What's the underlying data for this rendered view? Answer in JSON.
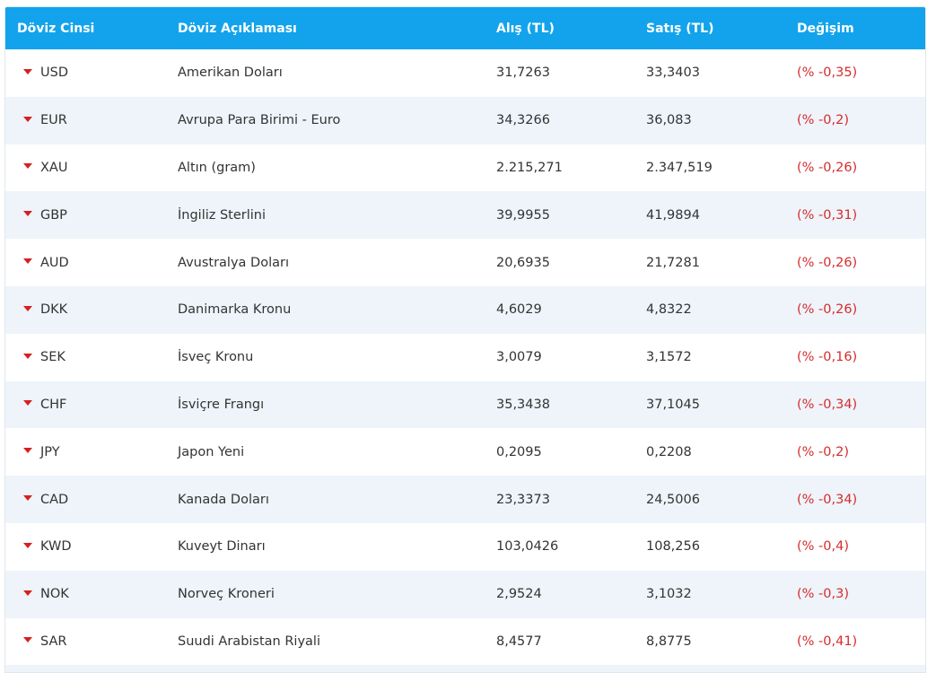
{
  "header": {
    "col1": "Döviz Cinsi",
    "col2": "Döviz Açıklaması",
    "col3": "Alış (TL)",
    "col4": "Satış (TL)",
    "col5": "Değişim"
  },
  "colors": {
    "header_bg": "#12a3ec",
    "row_alt_bg": "#eef4fa",
    "down_arrow": "#d62020",
    "change_text": "#d62c2c"
  },
  "rows": [
    {
      "code": "USD",
      "name": "Amerikan Doları",
      "buy": "31,7263",
      "sell": "33,3403",
      "change": "(% -0,35)",
      "trend_icon": "down-arrow-icon"
    },
    {
      "code": "EUR",
      "name": "Avrupa Para Birimi - Euro",
      "buy": "34,3266",
      "sell": "36,083",
      "change": "(% -0,2)",
      "trend_icon": "down-arrow-icon"
    },
    {
      "code": "XAU",
      "name": "Altın (gram)",
      "buy": "2.215,271",
      "sell": "2.347,519",
      "change": "(% -0,26)",
      "trend_icon": "down-arrow-icon"
    },
    {
      "code": "GBP",
      "name": "İngiliz Sterlini",
      "buy": "39,9955",
      "sell": "41,9894",
      "change": "(% -0,31)",
      "trend_icon": "down-arrow-icon"
    },
    {
      "code": "AUD",
      "name": "Avustralya Doları",
      "buy": "20,6935",
      "sell": "21,7281",
      "change": "(% -0,26)",
      "trend_icon": "down-arrow-icon"
    },
    {
      "code": "DKK",
      "name": "Danimarka Kronu",
      "buy": "4,6029",
      "sell": "4,8322",
      "change": "(% -0,26)",
      "trend_icon": "down-arrow-icon"
    },
    {
      "code": "SEK",
      "name": "İsveç Kronu",
      "buy": "3,0079",
      "sell": "3,1572",
      "change": "(% -0,16)",
      "trend_icon": "down-arrow-icon"
    },
    {
      "code": "CHF",
      "name": "İsviçre Frangı",
      "buy": "35,3438",
      "sell": "37,1045",
      "change": "(% -0,34)",
      "trend_icon": "down-arrow-icon"
    },
    {
      "code": "JPY",
      "name": "Japon Yeni",
      "buy": "0,2095",
      "sell": "0,2208",
      "change": "(% -0,2)",
      "trend_icon": "down-arrow-icon"
    },
    {
      "code": "CAD",
      "name": "Kanada Doları",
      "buy": "23,3373",
      "sell": "24,5006",
      "change": "(% -0,34)",
      "trend_icon": "down-arrow-icon"
    },
    {
      "code": "KWD",
      "name": "Kuveyt Dinarı",
      "buy": "103,0426",
      "sell": "108,256",
      "change": "(% -0,4)",
      "trend_icon": "down-arrow-icon"
    },
    {
      "code": "NOK",
      "name": "Norveç Kroneri",
      "buy": "2,9524",
      "sell": "3,1032",
      "change": "(% -0,3)",
      "trend_icon": "down-arrow-icon"
    },
    {
      "code": "SAR",
      "name": "Suudi Arabistan Riyali",
      "buy": "8,4577",
      "sell": "8,8775",
      "change": "(% -0,41)",
      "trend_icon": "down-arrow-icon"
    }
  ]
}
